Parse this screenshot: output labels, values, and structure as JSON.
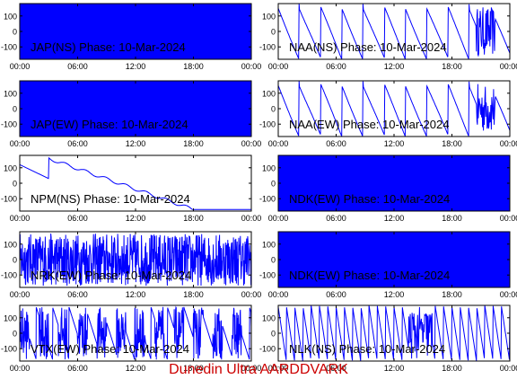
{
  "footer": "Dunedin Ultra AARDDVARK",
  "colors": {
    "trace": "#0000ff",
    "axis": "#000000",
    "footer": "#cc0000"
  },
  "chart_data": [
    {
      "type": "line",
      "title": "JAP(NS) Phase: 10-Mar-2024",
      "xlim": [
        0,
        24
      ],
      "ylim": [
        -180,
        180
      ],
      "xticks": [
        "00:00",
        "06:00",
        "12:00",
        "18:00",
        "00:00"
      ],
      "yticks": [
        "100",
        "0",
        "-100"
      ],
      "pattern": "dense"
    },
    {
      "type": "line",
      "title": "NAA(NS) Phase: 10-Mar-2024",
      "xlim": [
        0,
        24
      ],
      "ylim": [
        -180,
        180
      ],
      "xticks": [
        "00:00",
        "06:00",
        "12:00",
        "18:00",
        "00:00"
      ],
      "yticks": [
        "100",
        "0",
        "-100"
      ],
      "pattern": "sawtooth"
    },
    {
      "type": "line",
      "title": "JAP(EW) Phase: 10-Mar-2024",
      "xlim": [
        0,
        24
      ],
      "ylim": [
        -180,
        180
      ],
      "xticks": [
        "00:00",
        "06:00",
        "12:00",
        "18:00",
        "00:00"
      ],
      "yticks": [
        "100",
        "0",
        "-100"
      ],
      "pattern": "dense"
    },
    {
      "type": "line",
      "title": "NAA(EW) Phase: 10-Mar-2024",
      "xlim": [
        0,
        24
      ],
      "ylim": [
        -180,
        180
      ],
      "xticks": [
        "00:00",
        "06:00",
        "12:00",
        "18:00",
        "00:00"
      ],
      "yticks": [
        "100",
        "0",
        "-100"
      ],
      "pattern": "sawtooth"
    },
    {
      "type": "line",
      "title": "NPM(NS) Phase: 10-Mar-2024",
      "xlim": [
        0,
        24
      ],
      "ylim": [
        -180,
        180
      ],
      "xticks": [
        "00:00",
        "06:00",
        "12:00",
        "18:00",
        "00:00"
      ],
      "yticks": [
        "100",
        "0",
        "-100"
      ],
      "pattern": "drift"
    },
    {
      "type": "line",
      "title": "NDK(EW) Phase: 10-Mar-2024",
      "xlim": [
        0,
        24
      ],
      "ylim": [
        -180,
        180
      ],
      "xticks": [
        "00:00",
        "06:00",
        "12:00",
        "18:00",
        "00:00"
      ],
      "yticks": [
        "100",
        "0",
        "-100"
      ],
      "pattern": "dense"
    },
    {
      "type": "line",
      "title": "NRK(EW) Phase: 10-Mar-2024",
      "xlim": [
        0,
        24
      ],
      "ylim": [
        -180,
        180
      ],
      "xticks": [
        "00:00",
        "06:00",
        "12:00",
        "18:00",
        "00:00"
      ],
      "yticks": [
        "100",
        "0",
        "-100"
      ],
      "pattern": "noisy"
    },
    {
      "type": "line",
      "title": "NDK(EW) Phase: 10-Mar-2024",
      "xlim": [
        0,
        24
      ],
      "ylim": [
        -180,
        180
      ],
      "xticks": [
        "00:00",
        "06:00",
        "12:00",
        "18:00",
        "00:00"
      ],
      "yticks": [
        "100",
        "0",
        "-100"
      ],
      "pattern": "dense"
    },
    {
      "type": "line",
      "title": "VTX(EW) Phase: 10-Mar-2024",
      "xlim": [
        0,
        24
      ],
      "ylim": [
        -180,
        180
      ],
      "xticks": [
        "00:00",
        "06:00",
        "12:00",
        "18:00",
        "00:00"
      ],
      "yticks": [
        "100",
        "0",
        "-100"
      ],
      "pattern": "mixed"
    },
    {
      "type": "line",
      "title": "NLK(NS) Phase: 10-Mar-2024",
      "xlim": [
        0,
        24
      ],
      "ylim": [
        -180,
        180
      ],
      "xticks": [
        "00:00",
        "06:00",
        "12:00",
        "18:00",
        "00:00"
      ],
      "yticks": [
        "100",
        "0",
        "-100"
      ],
      "pattern": "fastsaw"
    }
  ]
}
